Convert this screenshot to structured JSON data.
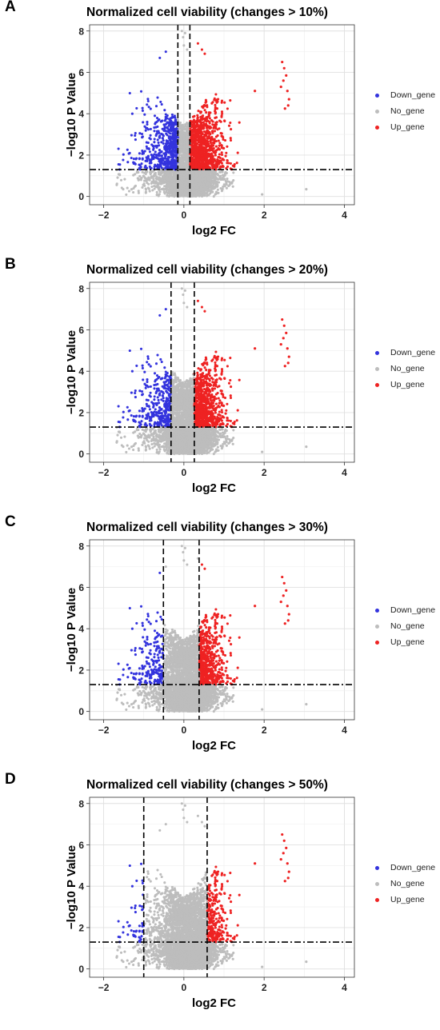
{
  "chart_data": [
    {
      "panel": "A",
      "type": "scatter",
      "title": "Normalized cell viability (changes > 10%)",
      "xlabel": "log2 FC",
      "ylabel": "−log10 P Value",
      "xlim": [
        -2.35,
        4.25
      ],
      "ylim": [
        -0.4,
        8.3
      ],
      "xticks": [
        -2,
        0,
        2,
        4
      ],
      "yticks": [
        0,
        2,
        4,
        6,
        8
      ],
      "fc_threshold": [
        -0.15,
        0.15
      ],
      "p_threshold": 1.3,
      "grid": true,
      "legend_position": "right",
      "series": [
        {
          "name": "Down_gene",
          "color": "#3333dd"
        },
        {
          "name": "No_gene",
          "color": "#bdbdbd"
        },
        {
          "name": "Up_gene",
          "color": "#ee2222"
        }
      ],
      "outliers_up": [
        [
          2.45,
          6.5
        ],
        [
          2.5,
          6.2
        ],
        [
          2.55,
          5.85
        ],
        [
          2.48,
          5.6
        ],
        [
          2.58,
          5.1
        ],
        [
          2.62,
          4.7
        ],
        [
          2.6,
          4.4
        ],
        [
          2.52,
          4.25
        ],
        [
          2.42,
          5.3
        ],
        [
          1.77,
          5.1
        ]
      ],
      "outliers_no": [
        [
          3.05,
          0.35
        ],
        [
          1.95,
          0.1
        ]
      ]
    },
    {
      "panel": "B",
      "type": "scatter",
      "title": "Normalized cell viability (changes > 20%)",
      "xlabel": "log2 FC",
      "ylabel": "−log10 P Value",
      "xlim": [
        -2.35,
        4.25
      ],
      "ylim": [
        -0.4,
        8.3
      ],
      "xticks": [
        -2,
        0,
        2,
        4
      ],
      "yticks": [
        0,
        2,
        4,
        6,
        8
      ],
      "fc_threshold": [
        -0.32,
        0.26
      ],
      "p_threshold": 1.3,
      "grid": true,
      "legend_position": "right",
      "series": [
        {
          "name": "Down_gene",
          "color": "#3333dd"
        },
        {
          "name": "No_gene",
          "color": "#bdbdbd"
        },
        {
          "name": "Up_gene",
          "color": "#ee2222"
        }
      ],
      "outliers_up": [
        [
          2.45,
          6.5
        ],
        [
          2.5,
          6.2
        ],
        [
          2.55,
          5.85
        ],
        [
          2.48,
          5.6
        ],
        [
          2.58,
          5.1
        ],
        [
          2.62,
          4.7
        ],
        [
          2.6,
          4.4
        ],
        [
          2.52,
          4.25
        ],
        [
          2.42,
          5.3
        ],
        [
          1.77,
          5.1
        ]
      ],
      "outliers_no": [
        [
          3.05,
          0.35
        ],
        [
          1.95,
          0.1
        ]
      ]
    },
    {
      "panel": "C",
      "type": "scatter",
      "title": "Normalized cell viability (changes > 30%)",
      "xlabel": "log2 FC",
      "ylabel": "−log10 P Value",
      "xlim": [
        -2.35,
        4.25
      ],
      "ylim": [
        -0.4,
        8.3
      ],
      "xticks": [
        -2,
        0,
        2,
        4
      ],
      "yticks": [
        0,
        2,
        4,
        6,
        8
      ],
      "fc_threshold": [
        -0.51,
        0.38
      ],
      "p_threshold": 1.3,
      "grid": true,
      "legend_position": "right",
      "series": [
        {
          "name": "Down_gene",
          "color": "#3333dd"
        },
        {
          "name": "No_gene",
          "color": "#bdbdbd"
        },
        {
          "name": "Up_gene",
          "color": "#ee2222"
        }
      ],
      "outliers_up": [
        [
          2.45,
          6.5
        ],
        [
          2.5,
          6.2
        ],
        [
          2.55,
          5.85
        ],
        [
          2.48,
          5.6
        ],
        [
          2.58,
          5.1
        ],
        [
          2.62,
          4.7
        ],
        [
          2.6,
          4.4
        ],
        [
          2.52,
          4.25
        ],
        [
          2.42,
          5.3
        ],
        [
          1.77,
          5.1
        ]
      ],
      "outliers_no": [
        [
          3.05,
          0.35
        ],
        [
          1.95,
          0.1
        ]
      ]
    },
    {
      "panel": "D",
      "type": "scatter",
      "title": "Normalized cell viability (changes > 50%)",
      "xlabel": "log2 FC",
      "ylabel": "−log10 P Value",
      "xlim": [
        -2.35,
        4.25
      ],
      "ylim": [
        -0.4,
        8.3
      ],
      "xticks": [
        -2,
        0,
        2,
        4
      ],
      "yticks": [
        0,
        2,
        4,
        6,
        8
      ],
      "fc_threshold": [
        -1.0,
        0.58
      ],
      "p_threshold": 1.3,
      "grid": true,
      "legend_position": "right",
      "series": [
        {
          "name": "Down_gene",
          "color": "#3333dd"
        },
        {
          "name": "No_gene",
          "color": "#bdbdbd"
        },
        {
          "name": "Up_gene",
          "color": "#ee2222"
        }
      ],
      "outliers_up": [
        [
          2.45,
          6.5
        ],
        [
          2.5,
          6.2
        ],
        [
          2.55,
          5.85
        ],
        [
          2.48,
          5.6
        ],
        [
          2.58,
          5.1
        ],
        [
          2.62,
          4.7
        ],
        [
          2.6,
          4.4
        ],
        [
          2.52,
          4.25
        ],
        [
          2.42,
          5.3
        ],
        [
          1.77,
          5.1
        ]
      ],
      "outliers_no": [
        [
          3.05,
          0.35
        ],
        [
          1.95,
          0.1
        ]
      ]
    }
  ]
}
